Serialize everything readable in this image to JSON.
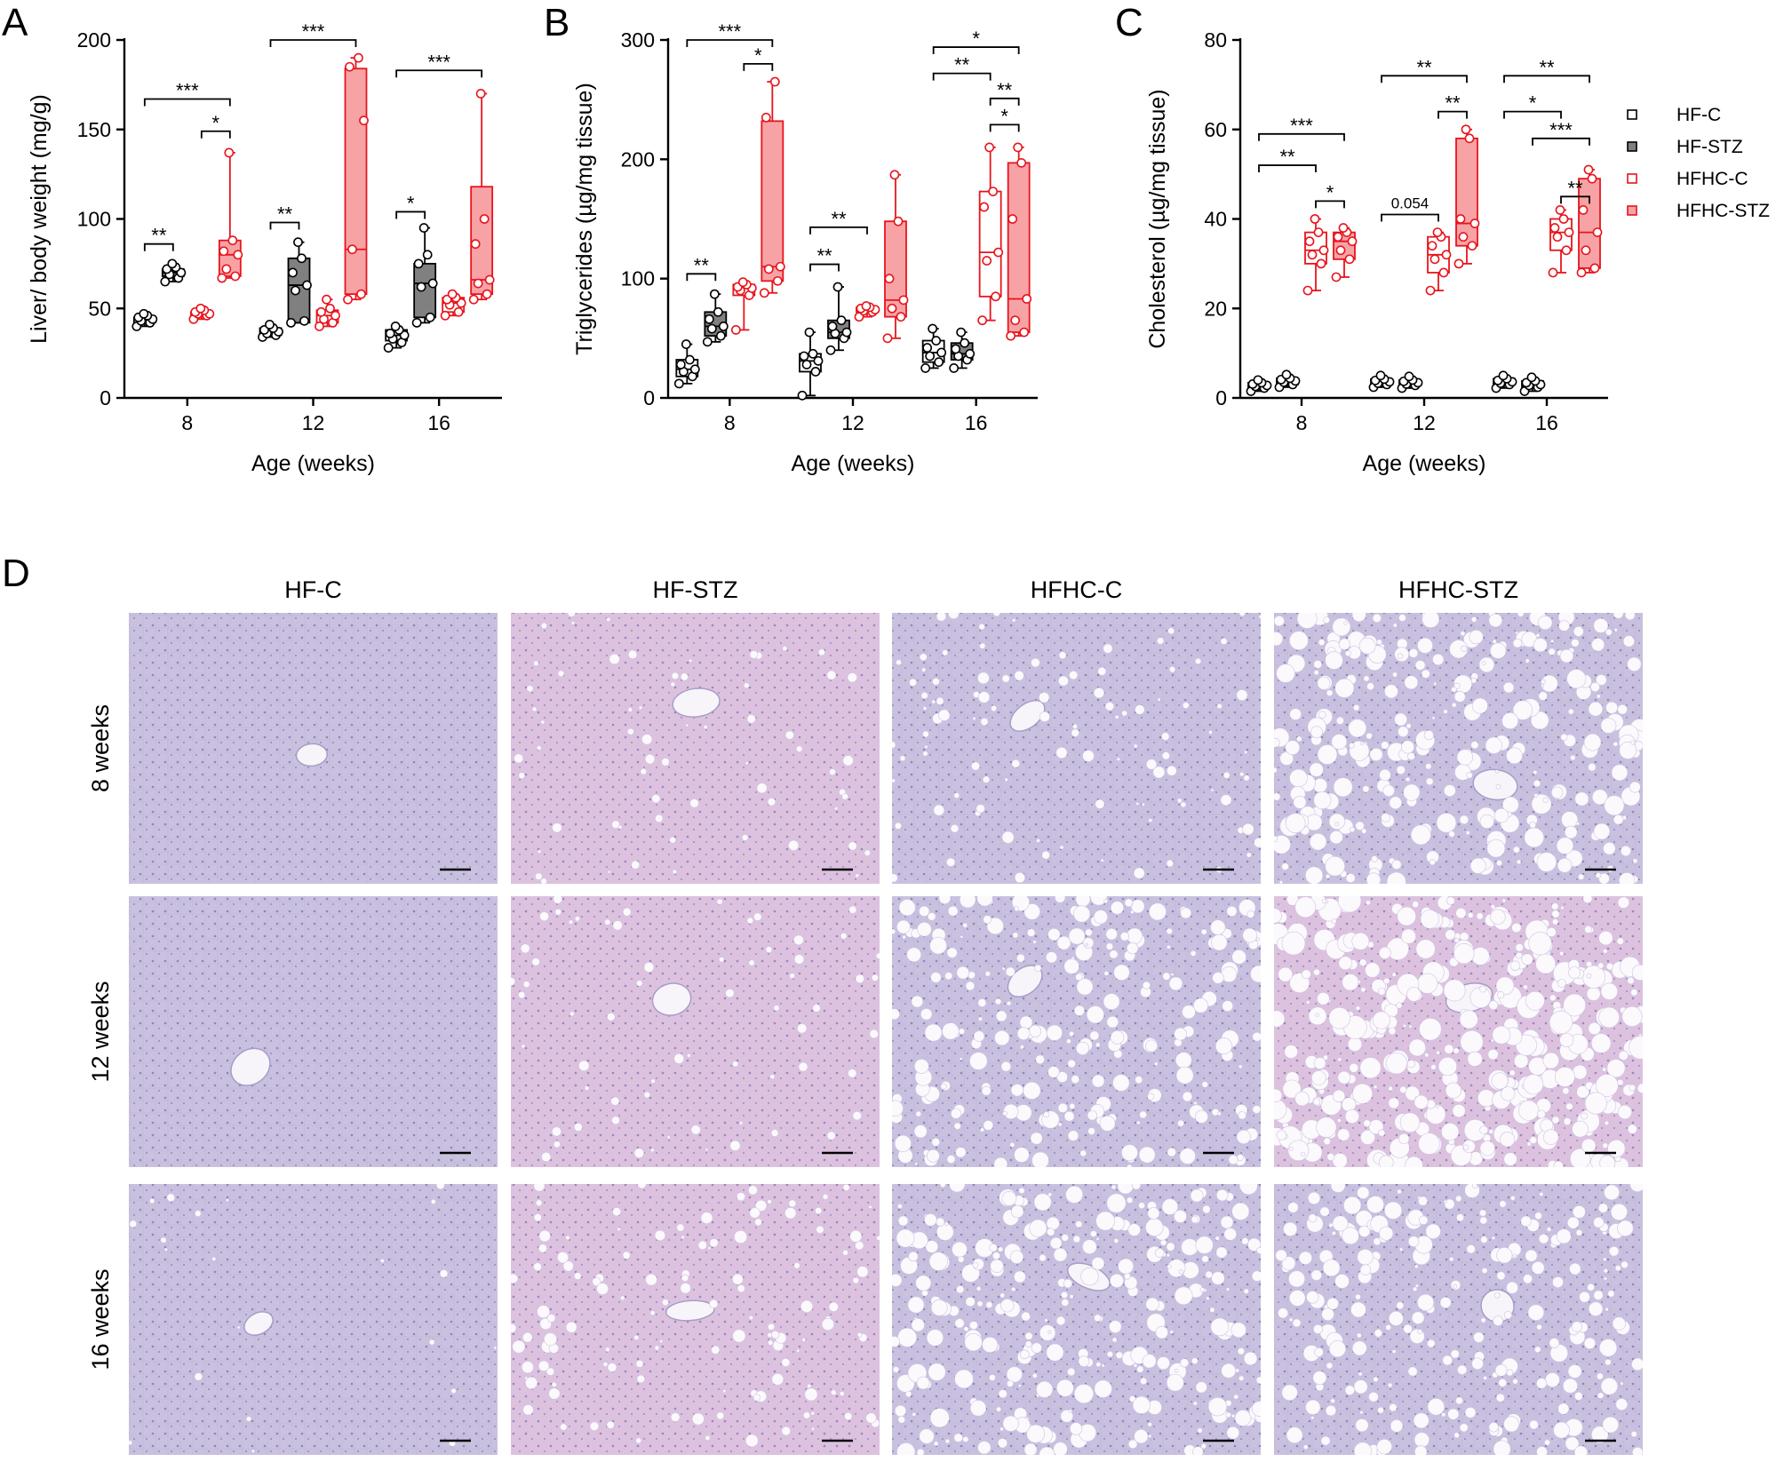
{
  "colors": {
    "hf_edge": "#000000",
    "hf_c_fill": "#ffffff",
    "hf_stz_fill": "#808080",
    "hfhc_edge": "#e8141c",
    "hfhc_c_fill": "#ffffff",
    "hfhc_stz_fill": "#f7a3a6",
    "tissue_base": "#c9c1df",
    "tissue_pink": "#dcc2de"
  },
  "legend": {
    "placement": "right of panel C",
    "items": [
      {
        "label": "HF-C",
        "edge": "#000000",
        "fill": "#ffffff"
      },
      {
        "label": "HF-STZ",
        "edge": "#000000",
        "fill": "#808080"
      },
      {
        "label": "HFHC-C",
        "edge": "#e8141c",
        "fill": "#ffffff"
      },
      {
        "label": "HFHC-STZ",
        "edge": "#e8141c",
        "fill": "#f7a3a6"
      }
    ]
  },
  "chart_data": [
    {
      "panel": "A",
      "type": "box",
      "xlabel": "Age (weeks)",
      "ylabel": "Liver/ body weight (mg/g)",
      "ylim": [
        0,
        200
      ],
      "yticks": [
        "0",
        "50",
        "100",
        "150",
        "200"
      ],
      "categories": [
        "8",
        "12",
        "16"
      ],
      "groups": {
        "8": [
          {
            "group": "HF-C",
            "min": 40,
            "q1": 42,
            "median": 44,
            "q3": 45,
            "max": 47,
            "points": [
              40,
              42,
              43,
              44,
              45,
              46,
              47
            ]
          },
          {
            "group": "HF-STZ",
            "min": 65,
            "q1": 68,
            "median": 70,
            "q3": 72,
            "max": 75,
            "points": [
              65,
              67,
              69,
              70,
              72,
              73,
              75
            ]
          },
          {
            "group": "HFHC-C",
            "min": 44,
            "q1": 46,
            "median": 47,
            "q3": 48,
            "max": 50,
            "points": [
              44,
              46,
              47,
              47,
              48,
              49,
              50
            ]
          },
          {
            "group": "HFHC-STZ",
            "min": 67,
            "q1": 68,
            "median": 80,
            "q3": 88,
            "max": 137,
            "points": [
              67,
              68,
              72,
              80,
              82,
              88,
              137
            ]
          }
        ],
        "12": [
          {
            "group": "HF-C",
            "min": 34,
            "q1": 35,
            "median": 37,
            "q3": 39,
            "max": 41,
            "points": [
              34,
              35,
              36,
              37,
              38,
              39,
              41
            ]
          },
          {
            "group": "HF-STZ",
            "min": 42,
            "q1": 42,
            "median": 63,
            "q3": 78,
            "max": 87,
            "points": [
              42,
              43,
              60,
              63,
              70,
              78,
              87
            ]
          },
          {
            "group": "HFHC-C",
            "min": 40,
            "q1": 42,
            "median": 46,
            "q3": 49,
            "max": 55,
            "points": [
              40,
              42,
              44,
              46,
              48,
              50,
              55
            ]
          },
          {
            "group": "HFHC-STZ",
            "min": 55,
            "q1": 58,
            "median": 83,
            "q3": 184,
            "max": 190,
            "points": [
              55,
              58,
              83,
              155,
              185,
              190
            ]
          }
        ],
        "16": [
          {
            "group": "HF-C",
            "min": 28,
            "q1": 32,
            "median": 35,
            "q3": 38,
            "max": 40,
            "points": [
              28,
              31,
              33,
              35,
              36,
              38,
              40
            ]
          },
          {
            "group": "HF-STZ",
            "min": 42,
            "q1": 45,
            "median": 64,
            "q3": 75,
            "max": 95,
            "points": [
              42,
              45,
              62,
              64,
              75,
              80,
              95
            ]
          },
          {
            "group": "HFHC-C",
            "min": 46,
            "q1": 48,
            "median": 53,
            "q3": 56,
            "max": 58,
            "points": [
              46,
              48,
              52,
              53,
              55,
              56,
              58
            ]
          },
          {
            "group": "HFHC-STZ",
            "min": 55,
            "q1": 58,
            "median": 66,
            "q3": 118,
            "max": 170,
            "points": [
              55,
              58,
              64,
              66,
              86,
              100,
              170
            ]
          }
        ]
      },
      "annotations": [
        {
          "text": "**",
          "cat": "8",
          "from": 0,
          "to": 1,
          "y": 86
        },
        {
          "text": "*",
          "cat": "8",
          "from": 2,
          "to": 3,
          "y": 149
        },
        {
          "text": "***",
          "cat": "8",
          "from": 0,
          "to": 3,
          "y": 167
        },
        {
          "text": "**",
          "cat": "12",
          "from": 0,
          "to": 1,
          "y": 98
        },
        {
          "text": "***",
          "cat": "12",
          "from": 0,
          "to": 3,
          "y": 200
        },
        {
          "text": "*",
          "cat": "16",
          "from": 0,
          "to": 1,
          "y": 104
        },
        {
          "text": "***",
          "cat": "16",
          "from": 0,
          "to": 3,
          "y": 183
        }
      ]
    },
    {
      "panel": "B",
      "type": "box",
      "xlabel": "Age (weeks)",
      "ylabel": "Triglycerides (µg/mg tissue)",
      "ylim": [
        0,
        300
      ],
      "yticks": [
        "0",
        "100",
        "200",
        "300"
      ],
      "categories": [
        "8",
        "12",
        "16"
      ],
      "groups": {
        "8": [
          {
            "group": "HF-C",
            "min": 12,
            "q1": 18,
            "median": 24,
            "q3": 32,
            "max": 45,
            "points": [
              12,
              18,
              22,
              24,
              28,
              32,
              45
            ]
          },
          {
            "group": "HF-STZ",
            "min": 47,
            "q1": 52,
            "median": 60,
            "q3": 72,
            "max": 87,
            "points": [
              47,
              52,
              58,
              60,
              66,
              72,
              87
            ]
          },
          {
            "group": "HFHC-C",
            "min": 57,
            "q1": 86,
            "median": 92,
            "q3": 95,
            "max": 97,
            "points": [
              57,
              86,
              90,
              92,
              93,
              95,
              97
            ]
          },
          {
            "group": "HFHC-STZ",
            "min": 88,
            "q1": 98,
            "median": 110,
            "q3": 232,
            "max": 265,
            "points": [
              88,
              98,
              108,
              110,
              235,
              265
            ]
          }
        ],
        "12": [
          {
            "group": "HF-C",
            "min": 2,
            "q1": 22,
            "median": 31,
            "q3": 37,
            "max": 55,
            "points": [
              2,
              22,
              28,
              31,
              35,
              37,
              55
            ]
          },
          {
            "group": "HF-STZ",
            "min": 40,
            "q1": 50,
            "median": 55,
            "q3": 65,
            "max": 93,
            "points": [
              40,
              50,
              54,
              55,
              60,
              65,
              93
            ]
          },
          {
            "group": "HFHC-C",
            "min": 68,
            "q1": 72,
            "median": 74,
            "q3": 76,
            "max": 77,
            "points": [
              68,
              72,
              73,
              74,
              75,
              76,
              77
            ]
          },
          {
            "group": "HFHC-STZ",
            "min": 50,
            "q1": 68,
            "median": 82,
            "q3": 148,
            "max": 187,
            "points": [
              50,
              68,
              75,
              82,
              100,
              148,
              187
            ]
          }
        ],
        "16": [
          {
            "group": "HF-C",
            "min": 25,
            "q1": 30,
            "median": 38,
            "q3": 48,
            "max": 58,
            "points": [
              25,
              30,
              35,
              38,
              42,
              48,
              58
            ]
          },
          {
            "group": "HF-STZ",
            "min": 25,
            "q1": 32,
            "median": 37,
            "q3": 46,
            "max": 55,
            "points": [
              25,
              32,
              35,
              37,
              41,
              46,
              55
            ]
          },
          {
            "group": "HFHC-C",
            "min": 65,
            "q1": 85,
            "median": 122,
            "q3": 173,
            "max": 210,
            "points": [
              65,
              85,
              115,
              122,
              160,
              173,
              210
            ]
          },
          {
            "group": "HFHC-STZ",
            "min": 52,
            "q1": 55,
            "median": 83,
            "q3": 197,
            "max": 210,
            "points": [
              52,
              55,
              65,
              83,
              150,
              197,
              210
            ]
          }
        ]
      },
      "annotations": [
        {
          "text": "**",
          "cat": "8",
          "from": 0,
          "to": 1,
          "y": 104
        },
        {
          "text": "*",
          "cat": "8",
          "from": 2,
          "to": 3,
          "y": 280
        },
        {
          "text": "***",
          "cat": "8",
          "from": 0,
          "to": 3,
          "y": 300
        },
        {
          "text": "**",
          "cat": "12",
          "from": 0,
          "to": 1,
          "y": 112
        },
        {
          "text": "**",
          "cat": "12",
          "from": 0,
          "to": 2,
          "y": 143
        },
        {
          "text": "*",
          "cat": "16",
          "from": 2,
          "to": 3,
          "y": 229
        },
        {
          "text": "**",
          "cat": "16",
          "from": 2,
          "to": 3,
          "y": 251
        },
        {
          "text": "**",
          "cat": "16",
          "from": 0,
          "to": 2,
          "y": 272
        },
        {
          "text": "*",
          "cat": "16",
          "from": 0,
          "to": 3,
          "y": 294
        }
      ]
    },
    {
      "panel": "C",
      "type": "box",
      "xlabel": "Age (weeks)",
      "ylabel": "Cholesterol (µg/mg tissue)",
      "ylim": [
        0,
        80
      ],
      "yticks": [
        "0",
        "20",
        "40",
        "60",
        "80"
      ],
      "categories": [
        "8",
        "12",
        "16"
      ],
      "groups": {
        "8": [
          {
            "group": "HF-C",
            "min": 1.5,
            "q1": 2.2,
            "median": 2.8,
            "q3": 3.4,
            "max": 4.0,
            "points": [
              1.5,
              2.2,
              2.6,
              2.8,
              3.1,
              3.4,
              4.0
            ]
          },
          {
            "group": "HF-STZ",
            "min": 2.4,
            "q1": 3.0,
            "median": 3.8,
            "q3": 4.4,
            "max": 5.2,
            "points": [
              2.4,
              3.0,
              3.5,
              3.8,
              4.1,
              4.4,
              5.2
            ]
          },
          {
            "group": "HFHC-C",
            "min": 24,
            "q1": 30,
            "median": 33,
            "q3": 37,
            "max": 40,
            "points": [
              24,
              30,
              32,
              33,
              35,
              37,
              40
            ]
          },
          {
            "group": "HFHC-STZ",
            "min": 27,
            "q1": 31,
            "median": 35,
            "q3": 37,
            "max": 38,
            "points": [
              27,
              31,
              33,
              35,
              36,
              37,
              38
            ]
          }
        ],
        "12": [
          {
            "group": "HF-C",
            "min": 2.4,
            "q1": 3.0,
            "median": 3.6,
            "q3": 4.2,
            "max": 5.0,
            "points": [
              2.4,
              3.0,
              3.3,
              3.6,
              3.9,
              4.2,
              5.0
            ]
          },
          {
            "group": "HF-STZ",
            "min": 2.2,
            "q1": 2.8,
            "median": 3.4,
            "q3": 4.0,
            "max": 4.8,
            "points": [
              2.2,
              2.8,
              3.1,
              3.4,
              3.7,
              4.0,
              4.8
            ]
          },
          {
            "group": "HFHC-C",
            "min": 24,
            "q1": 28,
            "median": 32,
            "q3": 36,
            "max": 37,
            "points": [
              24,
              28,
              31,
              32,
              34,
              36,
              37
            ]
          },
          {
            "group": "HFHC-STZ",
            "min": 30,
            "q1": 34,
            "median": 39,
            "q3": 58,
            "max": 60,
            "points": [
              30,
              34,
              36,
              39,
              40,
              58,
              60
            ]
          }
        ],
        "16": [
          {
            "group": "HF-C",
            "min": 2.2,
            "q1": 3.0,
            "median": 3.6,
            "q3": 4.3,
            "max": 5.0,
            "points": [
              2.2,
              3.0,
              3.3,
              3.6,
              3.9,
              4.3,
              5.0
            ]
          },
          {
            "group": "HF-STZ",
            "min": 1.5,
            "q1": 2.4,
            "median": 3.0,
            "q3": 3.8,
            "max": 4.6,
            "points": [
              1.5,
              2.4,
              2.8,
              3.0,
              3.4,
              3.8,
              4.6
            ]
          },
          {
            "group": "HFHC-C",
            "min": 28,
            "q1": 33,
            "median": 37,
            "q3": 40,
            "max": 42,
            "points": [
              28,
              33,
              36,
              37,
              38,
              40,
              42
            ]
          },
          {
            "group": "HFHC-STZ",
            "min": 28,
            "q1": 29,
            "median": 37,
            "q3": 49,
            "max": 51,
            "points": [
              28,
              29,
              33,
              37,
              42,
              49,
              51
            ]
          }
        ]
      },
      "annotations": [
        {
          "text": "*",
          "cat": "8",
          "from": 2,
          "to": 3,
          "y": 44
        },
        {
          "text": "**",
          "cat": "8",
          "from": 0,
          "to": 2,
          "y": 52
        },
        {
          "text": "***",
          "cat": "8",
          "from": 0,
          "to": 3,
          "y": 59
        },
        {
          "text": "0.054",
          "cat": "12",
          "from": 0,
          "to": 2,
          "y": 41
        },
        {
          "text": "**",
          "cat": "12",
          "from": 2,
          "to": 3,
          "y": 64
        },
        {
          "text": "**",
          "cat": "12",
          "from": 0,
          "to": 3,
          "y": 72
        },
        {
          "text": "**",
          "cat": "16",
          "from": 2,
          "to": 3,
          "y": 45
        },
        {
          "text": "***",
          "cat": "16",
          "from": 1,
          "to": 3,
          "y": 58
        },
        {
          "text": "*",
          "cat": "16",
          "from": 0,
          "to": 2,
          "y": 64
        },
        {
          "text": "**",
          "cat": "16",
          "from": 0,
          "to": 3,
          "y": 72
        }
      ]
    }
  ],
  "panel_letters": {
    "a": "A",
    "b": "B",
    "c": "C",
    "d": "D"
  },
  "histology": {
    "columns": [
      "HF-C",
      "HF-STZ",
      "HFHC-C",
      "HFHC-STZ"
    ],
    "rows": [
      "8 weeks",
      "12 weeks",
      "16 weeks"
    ],
    "steatosis": [
      [
        0.0,
        0.15,
        0.25,
        0.75
      ],
      [
        0.0,
        0.15,
        0.6,
        0.95
      ],
      [
        0.05,
        0.3,
        0.7,
        0.6
      ]
    ]
  }
}
